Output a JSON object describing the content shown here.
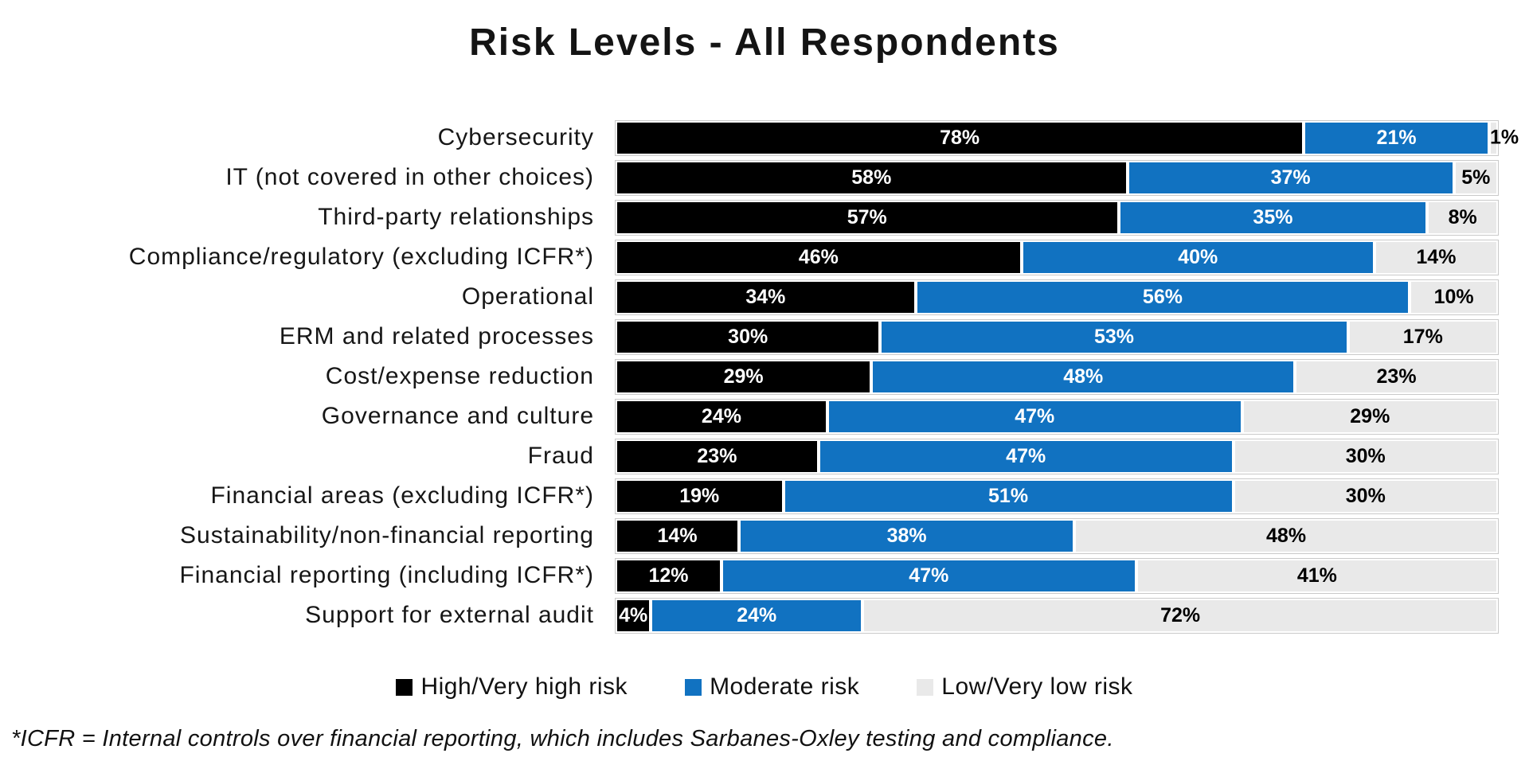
{
  "title": "Risk Levels - All Respondents",
  "footnote": "*ICFR = Internal controls over financial reporting, which includes Sarbanes-Oxley testing and compliance.",
  "chart_data": {
    "type": "bar",
    "orientation": "horizontal-stacked",
    "title": "Risk Levels - All Respondents",
    "xlabel": "",
    "ylabel": "",
    "xlim": [
      0,
      100
    ],
    "grid": false,
    "legend_position": "bottom",
    "value_suffix": "%",
    "categories": [
      "Cybersecurity",
      "IT (not covered in other choices)",
      "Third-party relationships",
      "Compliance/regulatory (excluding ICFR*)",
      "Operational",
      "ERM and related processes",
      "Cost/expense reduction",
      "Governance and culture",
      "Fraud",
      "Financial areas (excluding ICFR*)",
      "Sustainability/non-financial reporting",
      "Financial reporting (including ICFR*)",
      "Support for external audit"
    ],
    "series": [
      {
        "key": "high",
        "name": "High/Very high risk",
        "color": "#000000",
        "label_color": "#ffffff",
        "values": [
          78,
          58,
          57,
          46,
          34,
          30,
          29,
          24,
          23,
          19,
          14,
          12,
          4
        ]
      },
      {
        "key": "moderate",
        "name": "Moderate risk",
        "color": "#1172C1",
        "label_color": "#ffffff",
        "values": [
          21,
          37,
          35,
          40,
          56,
          53,
          48,
          47,
          47,
          51,
          38,
          47,
          24
        ]
      },
      {
        "key": "low",
        "name": "Low/Very low risk",
        "color": "#E9E9E9",
        "label_color": "#000000",
        "values": [
          1,
          5,
          8,
          14,
          10,
          17,
          23,
          29,
          30,
          30,
          48,
          41,
          72
        ]
      }
    ]
  }
}
